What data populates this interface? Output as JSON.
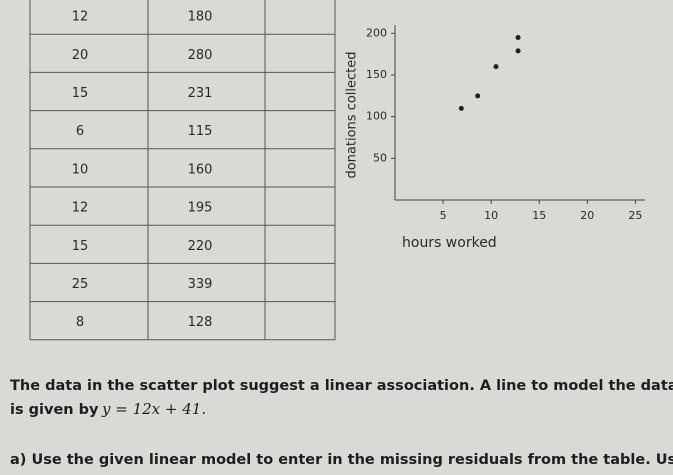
{
  "table": {
    "rows": [
      [
        "12",
        "180"
      ],
      [
        "20",
        "280"
      ],
      [
        "15",
        "231"
      ],
      [
        "6",
        "115"
      ],
      [
        "10",
        "160"
      ],
      [
        "12",
        "195"
      ],
      [
        "15",
        "220"
      ],
      [
        "25",
        "339"
      ],
      [
        "8",
        "128"
      ]
    ]
  },
  "chart_data": {
    "type": "scatter",
    "x_label": "hours worked",
    "y_label": "donations collected",
    "x": [
      6.9,
      8.6,
      10.5,
      12.8,
      12.8
    ],
    "values": [
      110,
      125,
      160,
      179,
      195
    ],
    "color": "#222222",
    "xlim": [
      0,
      26
    ],
    "ylim": [
      0,
      210
    ],
    "xticks": [
      5,
      10,
      15,
      20,
      25
    ],
    "yticks": [
      50,
      100,
      150,
      200
    ]
  },
  "text": {
    "line1": "The data in the scatter plot suggest a linear association. A line to model the data",
    "line2": "is given by",
    "equation": "y = 12x + 41.",
    "line3": "a) Use the given linear model to enter in the missing residuals from the table. Use"
  }
}
